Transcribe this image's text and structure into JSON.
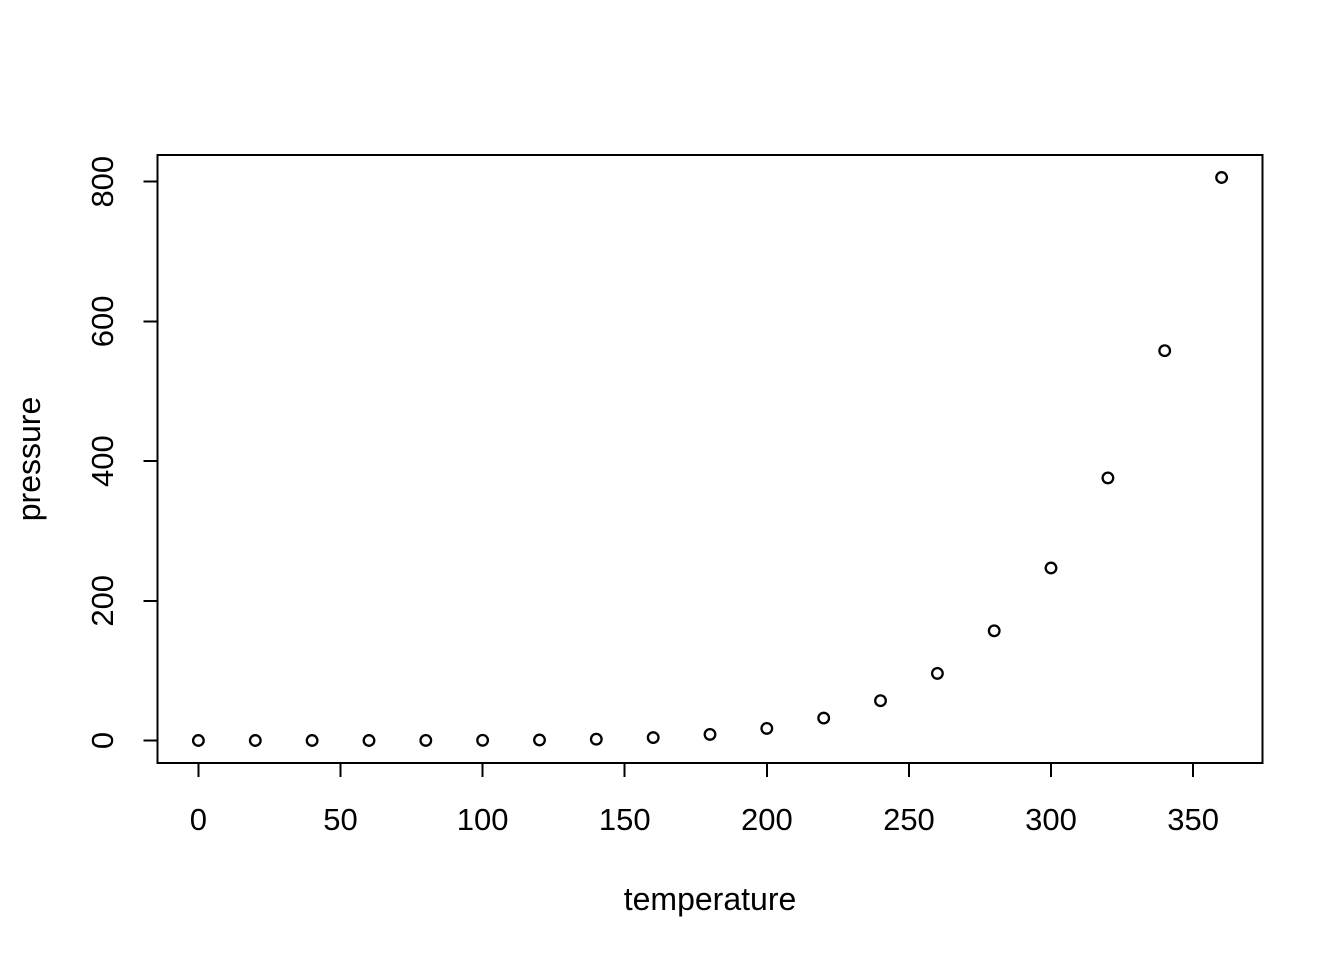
{
  "figure": {
    "background_color": "#ffffff",
    "foreground_color": "#000000",
    "title": ""
  },
  "chart_data": {
    "type": "scatter",
    "title": "",
    "xlabel": "temperature",
    "ylabel": "pressure",
    "marker": "open-circle",
    "marker_color": "#000000",
    "grid": false,
    "legend": null,
    "x": [
      0,
      20,
      40,
      60,
      80,
      100,
      120,
      140,
      160,
      180,
      200,
      220,
      240,
      260,
      280,
      300,
      320,
      340,
      360
    ],
    "y": [
      0.0002,
      0.0012,
      0.006,
      0.03,
      0.09,
      0.27,
      0.75,
      1.85,
      4.2,
      8.8,
      17.3,
      32.1,
      57,
      96,
      157,
      247,
      376,
      558,
      806
    ],
    "x_ticks": [
      0,
      50,
      100,
      150,
      200,
      250,
      300,
      350
    ],
    "y_ticks": [
      0,
      200,
      400,
      600,
      800
    ],
    "xlim": [
      -14.4,
      374.4
    ],
    "ylim": [
      -32.2,
      838.2
    ]
  }
}
